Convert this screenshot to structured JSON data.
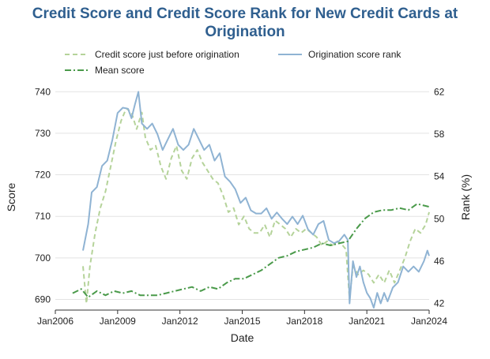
{
  "chart_data": {
    "type": "line",
    "title": "Credit Score and Credit Score Rank for New Credit Cards at Origination",
    "xlabel": "Date",
    "ylabel_left": "Score",
    "ylabel_right": "Rank (%)",
    "x_ticks": [
      "Jan2006",
      "Jan2009",
      "Jan2012",
      "Jan2015",
      "Jan2018",
      "Jan2021",
      "Jan2024"
    ],
    "y_left_ticks": [
      690,
      700,
      710,
      720,
      730,
      740
    ],
    "y_right_ticks": [
      42,
      46,
      50,
      54,
      58,
      62
    ],
    "ylim_left": [
      688,
      741
    ],
    "ylim_right": [
      41.6,
      62.4
    ],
    "grid": "horizontal",
    "legend_placement": "top",
    "series": [
      {
        "name": "Credit score just before origination",
        "axis": "left",
        "style": "dashed",
        "color": "#b5d39a",
        "points": [
          [
            "2007-05",
            698
          ],
          [
            "2007-07",
            689
          ],
          [
            "2007-09",
            698
          ],
          [
            "2007-12",
            706
          ],
          [
            "2008-03",
            712
          ],
          [
            "2008-06",
            716
          ],
          [
            "2008-09",
            722
          ],
          [
            "2008-12",
            728
          ],
          [
            "2009-03",
            733
          ],
          [
            "2009-06",
            736
          ],
          [
            "2009-09",
            735
          ],
          [
            "2009-12",
            731
          ],
          [
            "2010-03",
            735
          ],
          [
            "2010-05",
            729
          ],
          [
            "2010-08",
            726
          ],
          [
            "2010-11",
            727
          ],
          [
            "2011-02",
            722
          ],
          [
            "2011-05",
            719
          ],
          [
            "2011-08",
            724
          ],
          [
            "2011-11",
            727
          ],
          [
            "2012-02",
            721
          ],
          [
            "2012-05",
            719
          ],
          [
            "2012-08",
            724
          ],
          [
            "2012-11",
            726
          ],
          [
            "2013-02",
            723
          ],
          [
            "2013-05",
            721
          ],
          [
            "2013-08",
            719
          ],
          [
            "2013-11",
            718
          ],
          [
            "2014-02",
            715
          ],
          [
            "2014-05",
            711
          ],
          [
            "2014-08",
            712
          ],
          [
            "2014-11",
            708
          ],
          [
            "2015-02",
            710
          ],
          [
            "2015-05",
            707
          ],
          [
            "2015-08",
            706
          ],
          [
            "2015-11",
            706
          ],
          [
            "2016-02",
            708
          ],
          [
            "2016-05",
            705
          ],
          [
            "2016-08",
            709
          ],
          [
            "2016-11",
            708
          ],
          [
            "2017-02",
            707
          ],
          [
            "2017-05",
            705
          ],
          [
            "2017-08",
            707
          ],
          [
            "2017-11",
            706
          ],
          [
            "2018-02",
            707
          ],
          [
            "2018-05",
            706
          ],
          [
            "2018-08",
            705
          ],
          [
            "2018-11",
            703
          ],
          [
            "2019-02",
            704
          ],
          [
            "2019-05",
            703
          ],
          [
            "2019-08",
            704
          ],
          [
            "2019-11",
            703
          ],
          [
            "2020-01",
            702
          ],
          [
            "2020-03",
            690
          ],
          [
            "2020-05",
            698
          ],
          [
            "2020-08",
            696
          ],
          [
            "2020-11",
            697
          ],
          [
            "2021-02",
            696
          ],
          [
            "2021-05",
            694
          ],
          [
            "2021-08",
            696
          ],
          [
            "2021-11",
            694
          ],
          [
            "2022-02",
            697
          ],
          [
            "2022-05",
            694
          ],
          [
            "2022-08",
            697
          ],
          [
            "2022-11",
            700
          ],
          [
            "2023-02",
            704
          ],
          [
            "2023-05",
            707
          ],
          [
            "2023-08",
            706
          ],
          [
            "2023-11",
            708
          ],
          [
            "2024-01",
            711
          ]
        ]
      },
      {
        "name": "Origination score rank",
        "axis": "right",
        "style": "solid",
        "color": "#8fb3d3",
        "points": [
          [
            "2007-05",
            47.0
          ],
          [
            "2007-08",
            49.5
          ],
          [
            "2007-10",
            52.5
          ],
          [
            "2008-01",
            53.0
          ],
          [
            "2008-04",
            55.0
          ],
          [
            "2008-07",
            55.5
          ],
          [
            "2008-10",
            57.5
          ],
          [
            "2009-01",
            60.0
          ],
          [
            "2009-04",
            60.5
          ],
          [
            "2009-07",
            60.4
          ],
          [
            "2009-09",
            59.5
          ],
          [
            "2009-11",
            60.8
          ],
          [
            "2010-01",
            62.0
          ],
          [
            "2010-03",
            59.0
          ],
          [
            "2010-06",
            58.5
          ],
          [
            "2010-09",
            59.0
          ],
          [
            "2010-12",
            58.0
          ],
          [
            "2011-03",
            56.5
          ],
          [
            "2011-06",
            57.5
          ],
          [
            "2011-09",
            58.5
          ],
          [
            "2011-12",
            57.0
          ],
          [
            "2012-03",
            56.5
          ],
          [
            "2012-06",
            57.0
          ],
          [
            "2012-09",
            58.5
          ],
          [
            "2012-12",
            57.5
          ],
          [
            "2013-03",
            56.5
          ],
          [
            "2013-06",
            57.0
          ],
          [
            "2013-09",
            55.5
          ],
          [
            "2013-12",
            56.2
          ],
          [
            "2014-03",
            54.0
          ],
          [
            "2014-06",
            53.5
          ],
          [
            "2014-09",
            52.8
          ],
          [
            "2014-12",
            51.5
          ],
          [
            "2015-03",
            52.0
          ],
          [
            "2015-06",
            50.8
          ],
          [
            "2015-09",
            50.5
          ],
          [
            "2015-12",
            50.5
          ],
          [
            "2016-03",
            51.0
          ],
          [
            "2016-06",
            50.0
          ],
          [
            "2016-09",
            50.6
          ],
          [
            "2016-12",
            50.0
          ],
          [
            "2017-03",
            49.5
          ],
          [
            "2017-06",
            50.2
          ],
          [
            "2017-09",
            49.5
          ],
          [
            "2017-12",
            50.3
          ],
          [
            "2018-03",
            49.0
          ],
          [
            "2018-06",
            48.5
          ],
          [
            "2018-09",
            49.5
          ],
          [
            "2018-12",
            49.8
          ],
          [
            "2019-03",
            48.0
          ],
          [
            "2019-06",
            47.7
          ],
          [
            "2019-09",
            47.9
          ],
          [
            "2019-12",
            48.5
          ],
          [
            "2020-02",
            48.0
          ],
          [
            "2020-03",
            42.0
          ],
          [
            "2020-05",
            46.0
          ],
          [
            "2020-07",
            44.5
          ],
          [
            "2020-09",
            45.5
          ],
          [
            "2020-11",
            44.0
          ],
          [
            "2021-01",
            43.0
          ],
          [
            "2021-03",
            42.5
          ],
          [
            "2021-05",
            41.6
          ],
          [
            "2021-07",
            43.0
          ],
          [
            "2021-09",
            42.0
          ],
          [
            "2021-11",
            43.0
          ],
          [
            "2022-01",
            42.2
          ],
          [
            "2022-04",
            43.5
          ],
          [
            "2022-07",
            44.0
          ],
          [
            "2022-10",
            45.5
          ],
          [
            "2023-01",
            45.0
          ],
          [
            "2023-04",
            45.5
          ],
          [
            "2023-07",
            45.0
          ],
          [
            "2023-10",
            46.0
          ],
          [
            "2023-12",
            47.0
          ],
          [
            "2024-01",
            46.5
          ]
        ]
      },
      {
        "name": "Mean score",
        "axis": "left",
        "style": "dashdot",
        "color": "#4a9a4a",
        "points": [
          [
            "2006-11",
            691.5
          ],
          [
            "2007-04",
            692.5
          ],
          [
            "2007-08",
            690.5
          ],
          [
            "2008-01",
            692
          ],
          [
            "2008-06",
            691
          ],
          [
            "2008-11",
            692
          ],
          [
            "2009-04",
            691.5
          ],
          [
            "2009-09",
            692
          ],
          [
            "2010-02",
            691
          ],
          [
            "2010-07",
            691
          ],
          [
            "2010-12",
            691
          ],
          [
            "2011-05",
            691.5
          ],
          [
            "2011-10",
            692
          ],
          [
            "2012-03",
            692.5
          ],
          [
            "2012-08",
            693
          ],
          [
            "2013-01",
            692
          ],
          [
            "2013-06",
            693
          ],
          [
            "2013-11",
            692.5
          ],
          [
            "2014-04",
            694
          ],
          [
            "2014-09",
            695
          ],
          [
            "2015-02",
            695
          ],
          [
            "2015-07",
            696
          ],
          [
            "2015-12",
            697
          ],
          [
            "2016-05",
            698.5
          ],
          [
            "2016-10",
            700
          ],
          [
            "2017-03",
            700.5
          ],
          [
            "2017-08",
            701.5
          ],
          [
            "2018-01",
            702
          ],
          [
            "2018-06",
            702.5
          ],
          [
            "2018-11",
            703.5
          ],
          [
            "2019-04",
            703
          ],
          [
            "2019-09",
            703.5
          ],
          [
            "2020-02",
            704
          ],
          [
            "2020-07",
            707
          ],
          [
            "2020-12",
            709.5
          ],
          [
            "2021-05",
            711
          ],
          [
            "2021-10",
            711.5
          ],
          [
            "2022-03",
            711.5
          ],
          [
            "2022-08",
            712
          ],
          [
            "2023-01",
            711.5
          ],
          [
            "2023-06",
            713
          ],
          [
            "2023-11",
            712.5
          ],
          [
            "2024-01",
            712.3
          ]
        ]
      }
    ]
  }
}
